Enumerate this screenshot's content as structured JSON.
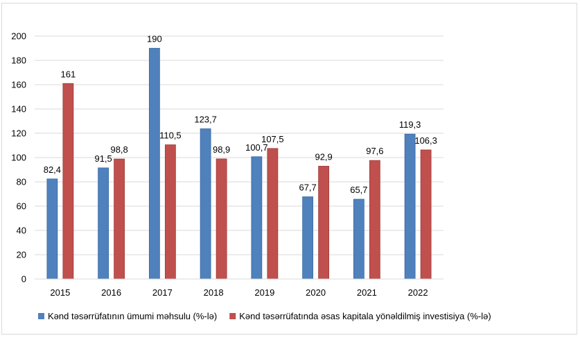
{
  "chart_data": {
    "type": "bar",
    "categories": [
      "2015",
      "2016",
      "2017",
      "2018",
      "2019",
      "2020",
      "2021",
      "2022"
    ],
    "series": [
      {
        "name": "Kənd təsərrüfatının ümumi məhsulu (%-lə)",
        "color": "#4f81bd",
        "values": [
          82.4,
          91.5,
          190,
          123.7,
          100.7,
          67.7,
          65.7,
          119.3
        ],
        "labels": [
          "82,4",
          "91,5",
          "190",
          "123,7",
          "100,7",
          "67,7",
          "65,7",
          "119,3"
        ]
      },
      {
        "name": "Kənd təsərrüfatında əsas kapitala yönəldilmiş investisiya (%-lə)",
        "color": "#c0504d",
        "values": [
          161,
          98.8,
          110.5,
          98.9,
          107.5,
          92.9,
          97.6,
          106.3
        ],
        "labels": [
          "161",
          "98,8",
          "110,5",
          "98,9",
          "107,5",
          "92,9",
          "97,6",
          "106,3"
        ]
      }
    ],
    "ylim": [
      0,
      200
    ],
    "yticks": [
      0,
      20,
      40,
      60,
      80,
      100,
      120,
      140,
      160,
      180,
      200
    ],
    "grid": true,
    "legend": "bottom",
    "title": "",
    "xlabel": "",
    "ylabel": ""
  }
}
